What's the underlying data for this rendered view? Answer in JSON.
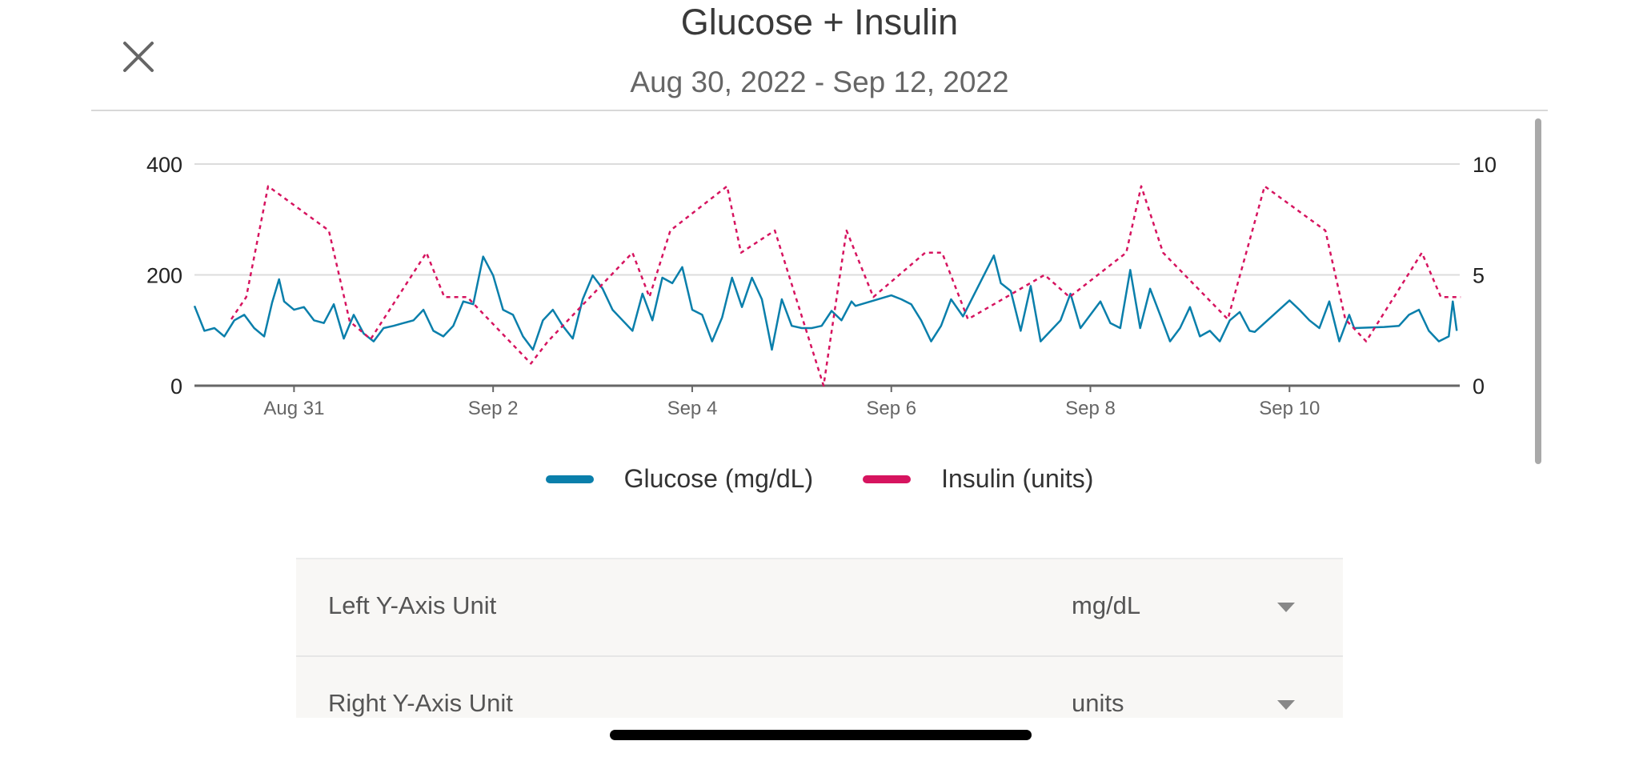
{
  "header": {
    "title": "Glucose + Insulin",
    "subtitle": "Aug 30, 2022 - Sep 12, 2022",
    "close_icon": "close-icon"
  },
  "legend": [
    {
      "label": "Glucose (mg/dL)",
      "color": "#0a7fab"
    },
    {
      "label": "Insulin (units)",
      "color": "#d6145f"
    }
  ],
  "settings": [
    {
      "label": "Left Y-Axis Unit",
      "value": "mg/dL"
    },
    {
      "label": "Right Y-Axis Unit",
      "value": "units"
    }
  ],
  "chart_data": {
    "type": "line",
    "title": "Glucose + Insulin",
    "x_unit": "days since Aug 30, 2022 00:00",
    "xlim": [
      0,
      12.71
    ],
    "x_ticks": [
      {
        "day": 1,
        "label": "Aug 31"
      },
      {
        "day": 3,
        "label": "Sep 2"
      },
      {
        "day": 5,
        "label": "Sep 4"
      },
      {
        "day": 7,
        "label": "Sep 6"
      },
      {
        "day": 9,
        "label": "Sep 8"
      },
      {
        "day": 11,
        "label": "Sep 10"
      }
    ],
    "left_axis": {
      "ylim": [
        0,
        400
      ],
      "ticks": [
        "0",
        "200",
        "400"
      ]
    },
    "right_axis": {
      "ylim": [
        0,
        10
      ],
      "ticks": [
        "0",
        "5",
        "10"
      ]
    },
    "grid": true,
    "legend_position": "bottom",
    "series": [
      {
        "name": "Glucose (mg/dL)",
        "axis": "left",
        "style": "solid",
        "color": "#0a7fab",
        "points": [
          [
            0,
            144
          ],
          [
            0.1,
            99
          ],
          [
            0.2,
            104
          ],
          [
            0.3,
            89
          ],
          [
            0.4,
            118
          ],
          [
            0.5,
            128
          ],
          [
            0.6,
            104
          ],
          [
            0.7,
            89
          ],
          [
            0.78,
            150
          ],
          [
            0.85,
            192
          ],
          [
            0.9,
            152
          ],
          [
            1.0,
            137
          ],
          [
            1.1,
            142
          ],
          [
            1.2,
            118
          ],
          [
            1.3,
            113
          ],
          [
            1.4,
            147
          ],
          [
            1.5,
            85
          ],
          [
            1.6,
            128
          ],
          [
            1.7,
            94
          ],
          [
            1.8,
            80
          ],
          [
            1.9,
            104
          ],
          [
            2.0,
            108
          ],
          [
            2.1,
            113
          ],
          [
            2.2,
            118
          ],
          [
            2.3,
            137
          ],
          [
            2.4,
            99
          ],
          [
            2.5,
            89
          ],
          [
            2.6,
            108
          ],
          [
            2.7,
            152
          ],
          [
            2.8,
            147
          ],
          [
            2.9,
            233
          ],
          [
            3.0,
            199
          ],
          [
            3.1,
            137
          ],
          [
            3.2,
            128
          ],
          [
            3.3,
            89
          ],
          [
            3.4,
            65
          ],
          [
            3.5,
            118
          ],
          [
            3.6,
            137
          ],
          [
            3.7,
            108
          ],
          [
            3.8,
            85
          ],
          [
            3.9,
            156
          ],
          [
            4.0,
            199
          ],
          [
            4.1,
            175
          ],
          [
            4.2,
            137
          ],
          [
            4.3,
            118
          ],
          [
            4.4,
            99
          ],
          [
            4.5,
            166
          ],
          [
            4.6,
            118
          ],
          [
            4.7,
            195
          ],
          [
            4.8,
            185
          ],
          [
            4.9,
            214
          ],
          [
            5.0,
            137
          ],
          [
            5.1,
            128
          ],
          [
            5.2,
            80
          ],
          [
            5.3,
            123
          ],
          [
            5.4,
            195
          ],
          [
            5.5,
            142
          ],
          [
            5.6,
            195
          ],
          [
            5.7,
            156
          ],
          [
            5.8,
            65
          ],
          [
            5.9,
            156
          ],
          [
            6.0,
            108
          ],
          [
            6.1,
            104
          ],
          [
            6.2,
            104
          ],
          [
            6.3,
            108
          ],
          [
            6.4,
            135
          ],
          [
            6.5,
            118
          ],
          [
            6.6,
            152
          ],
          [
            6.64,
            144
          ],
          [
            7.0,
            163
          ],
          [
            7.1,
            156
          ],
          [
            7.2,
            147
          ],
          [
            7.3,
            118
          ],
          [
            7.4,
            80
          ],
          [
            7.5,
            108
          ],
          [
            7.6,
            156
          ],
          [
            7.72,
            125
          ],
          [
            8.03,
            235
          ],
          [
            8.1,
            185
          ],
          [
            8.2,
            171
          ],
          [
            8.3,
            99
          ],
          [
            8.4,
            180
          ],
          [
            8.5,
            80
          ],
          [
            8.6,
            99
          ],
          [
            8.7,
            118
          ],
          [
            8.8,
            166
          ],
          [
            8.9,
            104
          ],
          [
            9.0,
            128
          ],
          [
            9.1,
            152
          ],
          [
            9.2,
            113
          ],
          [
            9.3,
            104
          ],
          [
            9.4,
            209
          ],
          [
            9.5,
            104
          ],
          [
            9.6,
            175
          ],
          [
            9.7,
            128
          ],
          [
            9.8,
            80
          ],
          [
            9.9,
            104
          ],
          [
            10.0,
            142
          ],
          [
            10.1,
            89
          ],
          [
            10.2,
            99
          ],
          [
            10.3,
            80
          ],
          [
            10.4,
            118
          ],
          [
            10.5,
            133
          ],
          [
            10.6,
            99
          ],
          [
            10.65,
            97
          ],
          [
            11.0,
            154
          ],
          [
            11.1,
            137
          ],
          [
            11.2,
            118
          ],
          [
            11.3,
            104
          ],
          [
            11.4,
            152
          ],
          [
            11.5,
            80
          ],
          [
            11.6,
            128
          ],
          [
            11.65,
            104
          ],
          [
            11.95,
            106
          ],
          [
            12.1,
            108
          ],
          [
            12.2,
            128
          ],
          [
            12.3,
            137
          ],
          [
            12.4,
            99
          ],
          [
            12.5,
            80
          ],
          [
            12.6,
            89
          ],
          [
            12.64,
            152
          ],
          [
            12.68,
            99
          ]
        ]
      },
      {
        "name": "Insulin (units)",
        "axis": "right",
        "style": "dotted",
        "color": "#d6145f",
        "points": [
          [
            0.37,
            3
          ],
          [
            0.52,
            4
          ],
          [
            0.74,
            9
          ],
          [
            1.35,
            7
          ],
          [
            1.56,
            2.9
          ],
          [
            1.77,
            2.1
          ],
          [
            2.33,
            6
          ],
          [
            2.51,
            4
          ],
          [
            2.74,
            4
          ],
          [
            3.38,
            1
          ],
          [
            3.55,
            2
          ],
          [
            4.4,
            6
          ],
          [
            4.57,
            4
          ],
          [
            4.78,
            7
          ],
          [
            5.35,
            9
          ],
          [
            5.49,
            6
          ],
          [
            5.83,
            7
          ],
          [
            6.32,
            0
          ],
          [
            6.55,
            7
          ],
          [
            6.82,
            4
          ],
          [
            7.34,
            6
          ],
          [
            7.51,
            6
          ],
          [
            7.77,
            3
          ],
          [
            8.54,
            5
          ],
          [
            8.79,
            4
          ],
          [
            9.36,
            6
          ],
          [
            9.51,
            9
          ],
          [
            9.73,
            6
          ],
          [
            10.38,
            3
          ],
          [
            10.75,
            9
          ],
          [
            11.36,
            7
          ],
          [
            11.56,
            3
          ],
          [
            11.77,
            2
          ],
          [
            12.33,
            6
          ],
          [
            12.52,
            4
          ],
          [
            12.72,
            4
          ]
        ]
      }
    ]
  }
}
